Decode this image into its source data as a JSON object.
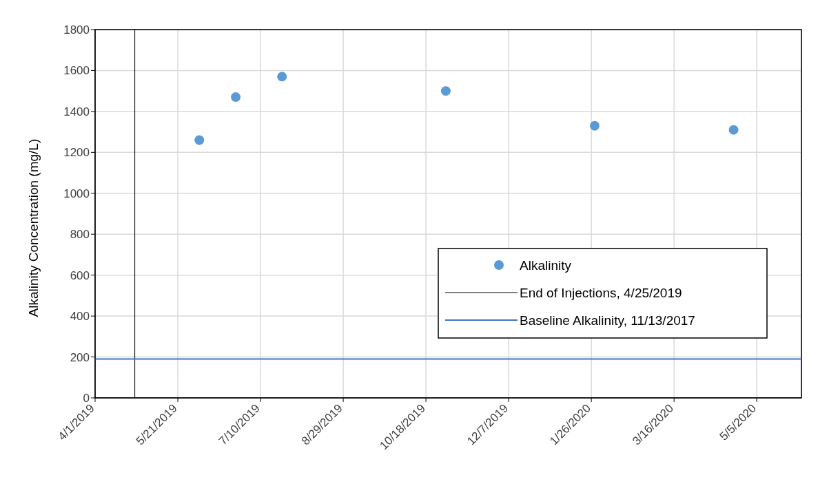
{
  "chart_data": {
    "type": "scatter",
    "ylabel": "Alkalinity Concentration (mg/L)",
    "x": [
      "2019-06-03",
      "2019-06-25",
      "2019-07-23",
      "2019-10-30",
      "2020-01-28",
      "2020-04-21"
    ],
    "series": [
      {
        "name": "Alkalinity",
        "color": "#5b9bd5",
        "values": [
          1260,
          1470,
          1570,
          1500,
          1330,
          1310
        ]
      }
    ],
    "xlim": [
      "2019-04-01",
      "2020-06-01"
    ],
    "xticks": [
      {
        "value": "2019-04-01",
        "label": "4/1/2019"
      },
      {
        "value": "2019-05-21",
        "label": "5/21/2019"
      },
      {
        "value": "2019-07-10",
        "label": "7/10/2019"
      },
      {
        "value": "2019-08-29",
        "label": "8/29/2019"
      },
      {
        "value": "2019-10-18",
        "label": "10/18/2019"
      },
      {
        "value": "2019-12-07",
        "label": "12/7/2019"
      },
      {
        "value": "2020-01-26",
        "label": "1/26/2020"
      },
      {
        "value": "2020-03-16",
        "label": "3/16/2020"
      },
      {
        "value": "2020-05-05",
        "label": "5/5/2020"
      }
    ],
    "ylim": [
      0,
      1800
    ],
    "yticks": [
      0,
      200,
      400,
      600,
      800,
      1000,
      1200,
      1400,
      1600,
      1800
    ],
    "ref_lines": [
      {
        "axis": "x",
        "value": "2019-04-25",
        "label": "End of Injections, 4/25/2019",
        "color": "#000000"
      },
      {
        "axis": "y",
        "value": 190,
        "label": "Baseline Alkalinity, 11/13/2017",
        "color": "#4472c4"
      }
    ],
    "grid": true,
    "legend": "right",
    "marker": "circle"
  }
}
